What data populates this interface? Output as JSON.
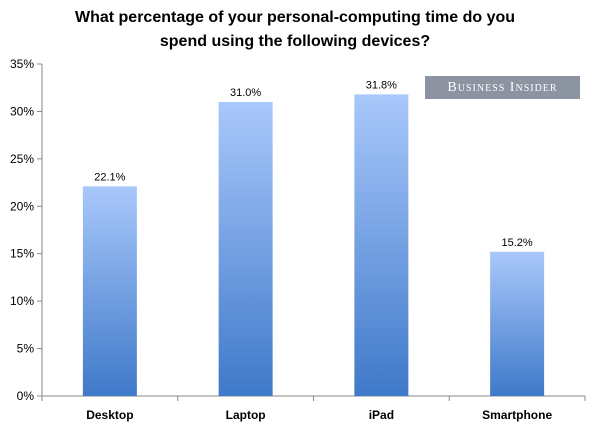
{
  "chart_data": {
    "type": "bar",
    "title": "What percentage of your personal-computing time do you spend using the following devices?",
    "categories": [
      "Desktop",
      "Laptop",
      "iPad",
      "Smartphone"
    ],
    "values": [
      22.1,
      31.0,
      31.8,
      15.2
    ],
    "value_labels": [
      "22.1%",
      "31.0%",
      "31.8%",
      "15.2%"
    ],
    "xlabel": "",
    "ylabel": "",
    "ylim": [
      0,
      35
    ],
    "yticks": [
      "0%",
      "5%",
      "10%",
      "15%",
      "20%",
      "25%",
      "30%",
      "35%"
    ],
    "grid": false,
    "legend": "none",
    "bar_color_top": "#a9c8fb",
    "bar_color_bottom": "#3f79c9"
  },
  "watermark": "Business Insider"
}
